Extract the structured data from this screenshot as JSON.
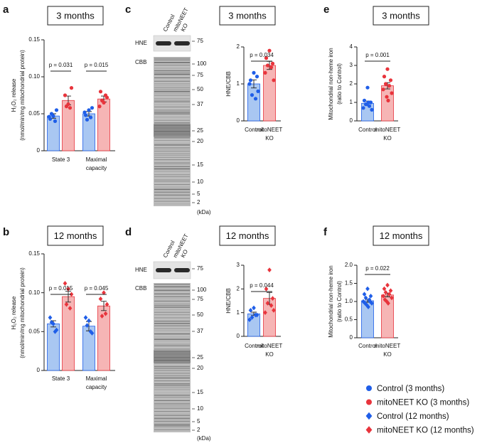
{
  "chart_data": [
    {
      "type": "bar",
      "panel": "a",
      "title": "3 months",
      "ylabel": [
        "H₂O₂ release",
        "(nmol/min/mg mitochondrial protein)"
      ],
      "categories": [
        "State 3",
        [
          "Maximal",
          "capacity"
        ]
      ],
      "pvalues": [
        "p = 0.031",
        "p = 0.015"
      ],
      "series": [
        {
          "color": "#1f5ee8",
          "fill": "#a9c7f2",
          "marker": "circle",
          "values": [
            0.047,
            0.05
          ],
          "errors": [
            0.003,
            0.003
          ],
          "points": [
            [
              0.047,
              0.043,
              0.055,
              0.05,
              0.04,
              0.046
            ],
            [
              0.055,
              0.048,
              0.058,
              0.042,
              0.045,
              0.052
            ]
          ]
        },
        {
          "color": "#e8343c",
          "fill": "#f6b5b5",
          "marker": "circle",
          "values": [
            0.068,
            0.07
          ],
          "errors": [
            0.006,
            0.004
          ],
          "points": [
            [
              0.063,
              0.075,
              0.085,
              0.06,
              0.058
            ],
            [
              0.065,
              0.08,
              0.072,
              0.068,
              0.075,
              0.06
            ]
          ]
        }
      ],
      "ylim": [
        0,
        0.15
      ],
      "yticks": [
        0,
        0.05,
        {
          "value": 0.1,
          "label": "0.10"
        },
        0.15
      ]
    },
    {
      "type": "bar",
      "panel": "b",
      "title": "12 months",
      "ylabel": [
        "H₂O₂ release",
        "(nmol/min/mg mitochondrial protein)"
      ],
      "categories": [
        "State 3",
        [
          "Maximal",
          "capacity"
        ]
      ],
      "pvalues": [
        "p = 0.015",
        "p = 0.045"
      ],
      "series": [
        {
          "color": "#1f5ee8",
          "fill": "#a9c7f2",
          "marker": "diamond",
          "values": [
            0.06,
            0.057
          ],
          "errors": [
            0.004,
            0.006
          ],
          "points": [
            [
              0.06,
              0.068,
              0.052,
              0.062,
              0.05
            ],
            [
              0.064,
              0.068,
              0.048,
              0.058,
              0.05
            ]
          ]
        },
        {
          "color": "#e8343c",
          "fill": "#f6b5b5",
          "marker": "diamond",
          "values": [
            0.095,
            0.083
          ],
          "errors": [
            0.007,
            0.006
          ],
          "points": [
            [
              0.105,
              0.112,
              0.098,
              0.085,
              0.08
            ],
            [
              0.1,
              0.092,
              0.085,
              0.07,
              0.073
            ]
          ]
        }
      ],
      "ylim": [
        0,
        0.15
      ],
      "yticks": [
        0,
        0.05,
        {
          "value": 0.1,
          "label": "0.10"
        },
        0.15
      ]
    },
    {
      "type": "bar",
      "title": "3 months",
      "ylabel": [
        "HNE/CBB"
      ],
      "categories": [
        "Control",
        [
          "mitoNEET",
          "KO"
        ]
      ],
      "pvalues": [
        "p = 0.034"
      ],
      "colors": [
        "#1f5ee8",
        "#e8343c"
      ],
      "fills": [
        "#a9c7f2",
        "#f6b5b5"
      ],
      "marker": "circle",
      "values": [
        1.0,
        1.5
      ],
      "errors": [
        0.11,
        0.11
      ],
      "points": [
        [
          1.3,
          1.1,
          1.2,
          0.7,
          0.6,
          1.0,
          0.8
        ],
        [
          1.9,
          1.7,
          1.55,
          1.5,
          1.45,
          1.3,
          1.1
        ]
      ],
      "ylim": [
        0,
        2
      ],
      "yticks": [
        0,
        1,
        2
      ]
    },
    {
      "type": "bar",
      "title": "12 months",
      "ylabel": [
        "HNE/CBB"
      ],
      "categories": [
        "Control",
        [
          "mitoNEET",
          "KO"
        ]
      ],
      "pvalues": [
        "p = 0.044"
      ],
      "colors": [
        "#1f5ee8",
        "#e8343c"
      ],
      "fills": [
        "#a9c7f2",
        "#f6b5b5"
      ],
      "marker": "diamond",
      "values": [
        0.95,
        1.6
      ],
      "errors": [
        0.07,
        0.25
      ],
      "points": [
        [
          1.2,
          1.1,
          0.9,
          0.8,
          0.9,
          0.7
        ],
        [
          2.8,
          2.0,
          1.6,
          1.4,
          1.3,
          1.0,
          1.1
        ]
      ],
      "ylim": [
        0,
        3
      ],
      "yticks": [
        0,
        1,
        2,
        3
      ]
    },
    {
      "type": "bar",
      "panel": "e",
      "title": "3 months",
      "ylabel": [
        "Mitochondrial non-heme iron",
        "(ratio to Control)"
      ],
      "categories": [
        "Control",
        [
          "mitoNEET",
          "KO"
        ]
      ],
      "pvalues": [
        "p = 0.001"
      ],
      "colors": [
        "#1f5ee8",
        "#e8343c"
      ],
      "fills": [
        "#a9c7f2",
        "#f6b5b5"
      ],
      "marker": "circle",
      "values": [
        0.95,
        1.9
      ],
      "errors": [
        0.12,
        0.17
      ],
      "points": [
        [
          1.8,
          1.1,
          1.0,
          0.9,
          0.8,
          0.7,
          0.6,
          0.9,
          1.0
        ],
        [
          2.8,
          2.4,
          2.2,
          2.0,
          1.9,
          1.7,
          1.5,
          1.3,
          1.1
        ]
      ],
      "ylim": [
        0,
        4
      ],
      "yticks": [
        0,
        1,
        2,
        3,
        4
      ]
    },
    {
      "type": "bar",
      "panel": "f",
      "title": "12 months",
      "ylabel": [
        "Mitochondrial non-heme iron",
        "(ratio to Control)"
      ],
      "categories": [
        "Control",
        [
          "mitoNEET",
          "KO"
        ]
      ],
      "pvalues": [
        "p = 0.022"
      ],
      "colors": [
        "#1f5ee8",
        "#e8343c"
      ],
      "fills": [
        "#a9c7f2",
        "#f6b5b5"
      ],
      "marker": "diamond",
      "values": [
        1.02,
        1.18
      ],
      "errors": [
        0.04,
        0.05
      ],
      "points": [
        [
          1.35,
          1.2,
          1.15,
          1.1,
          1.05,
          1.0,
          0.95,
          0.9,
          0.85,
          0.95,
          1.0
        ],
        [
          1.45,
          1.35,
          1.3,
          1.25,
          1.2,
          1.15,
          1.1,
          1.0,
          0.95,
          1.05
        ]
      ],
      "ylim": [
        0,
        2
      ],
      "yticks": [
        0,
        0.5,
        {
          "value": 1,
          "label": "1.0"
        },
        1.5,
        {
          "value": 2,
          "label": "2.0"
        }
      ]
    }
  ],
  "blots": [
    {
      "panel": "c",
      "lanes": [
        "Control",
        [
          "mitoNEET",
          "KO"
        ]
      ],
      "rows": [
        "HNE",
        "CBB"
      ],
      "markers": [
        75,
        100,
        75,
        50,
        37,
        25,
        20,
        15,
        10,
        5,
        2
      ],
      "unit": "(kDa)"
    },
    {
      "panel": "d",
      "lanes": [
        "Control",
        [
          "mitoNEET",
          "KO"
        ]
      ],
      "rows": [
        "HNE",
        "CBB"
      ],
      "markers": [
        75,
        100,
        75,
        50,
        37,
        25,
        20,
        15,
        10,
        5,
        2
      ],
      "unit": "(kDa)"
    }
  ],
  "legend": [
    {
      "label": "Control (3 months)",
      "color": "#1f5ee8",
      "marker": "circle"
    },
    {
      "label": "mitoNEET KO (3 months)",
      "color": "#e8343c",
      "marker": "circle"
    },
    {
      "label": "Control (12 months)",
      "color": "#1f5ee8",
      "marker": "diamond"
    },
    {
      "label": "mitoNEET KO (12 months)",
      "color": "#e8343c",
      "marker": "diamond"
    }
  ]
}
